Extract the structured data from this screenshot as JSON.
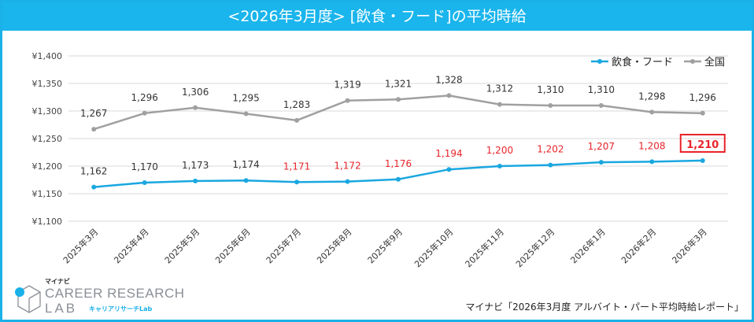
{
  "header": {
    "title": "<2026年3月度> [飲食・フード]の平均時給"
  },
  "chart_data": {
    "type": "line",
    "title": "<2026年3月度> [飲食・フード]の平均時給",
    "categories": [
      "2025年3月",
      "2025年4月",
      "2025年5月",
      "2025年6月",
      "2025年7月",
      "2025年8月",
      "2025年9月",
      "2025年10月",
      "2025年11月",
      "2025年12月",
      "2026年1月",
      "2026年2月",
      "2026年3月"
    ],
    "series": [
      {
        "name": "飲食・フード",
        "color": "#1aa7e0",
        "values": [
          1162,
          1170,
          1173,
          1174,
          1171,
          1172,
          1176,
          1194,
          1200,
          1202,
          1207,
          1208,
          1210
        ],
        "labels": [
          "1,162",
          "1,170",
          "1,173",
          "1,174",
          "1,171",
          "1,172",
          "1,176",
          "1,194",
          "1,200",
          "1,202",
          "1,207",
          "1,208",
          "1,210"
        ]
      },
      {
        "name": "全国",
        "color": "#a0a0a0",
        "values": [
          1267,
          1296,
          1306,
          1295,
          1283,
          1319,
          1321,
          1328,
          1312,
          1310,
          1310,
          1298,
          1296
        ],
        "labels": [
          "1,267",
          "1,296",
          "1,306",
          "1,295",
          "1,283",
          "1,319",
          "1,321",
          "1,328",
          "1,312",
          "1,310",
          "1,310",
          "1,298",
          "1,296"
        ]
      }
    ],
    "highlight_color": "#e8242a",
    "ylim": [
      1100,
      1400
    ],
    "yticks": [
      "¥1,100",
      "¥1,150",
      "¥1,200",
      "¥1,250",
      "¥1,300",
      "¥1,350",
      "¥1,400"
    ],
    "grid": true,
    "legend": "top-right"
  },
  "logo": {
    "brand": "マイナビ",
    "name": "CAREER RESEARCH",
    "lab": "LAB",
    "sub": "キャリアリサーチLab"
  },
  "source": "マイナビ「2026年3月度 アルバイト・パート平均時給レポート」"
}
